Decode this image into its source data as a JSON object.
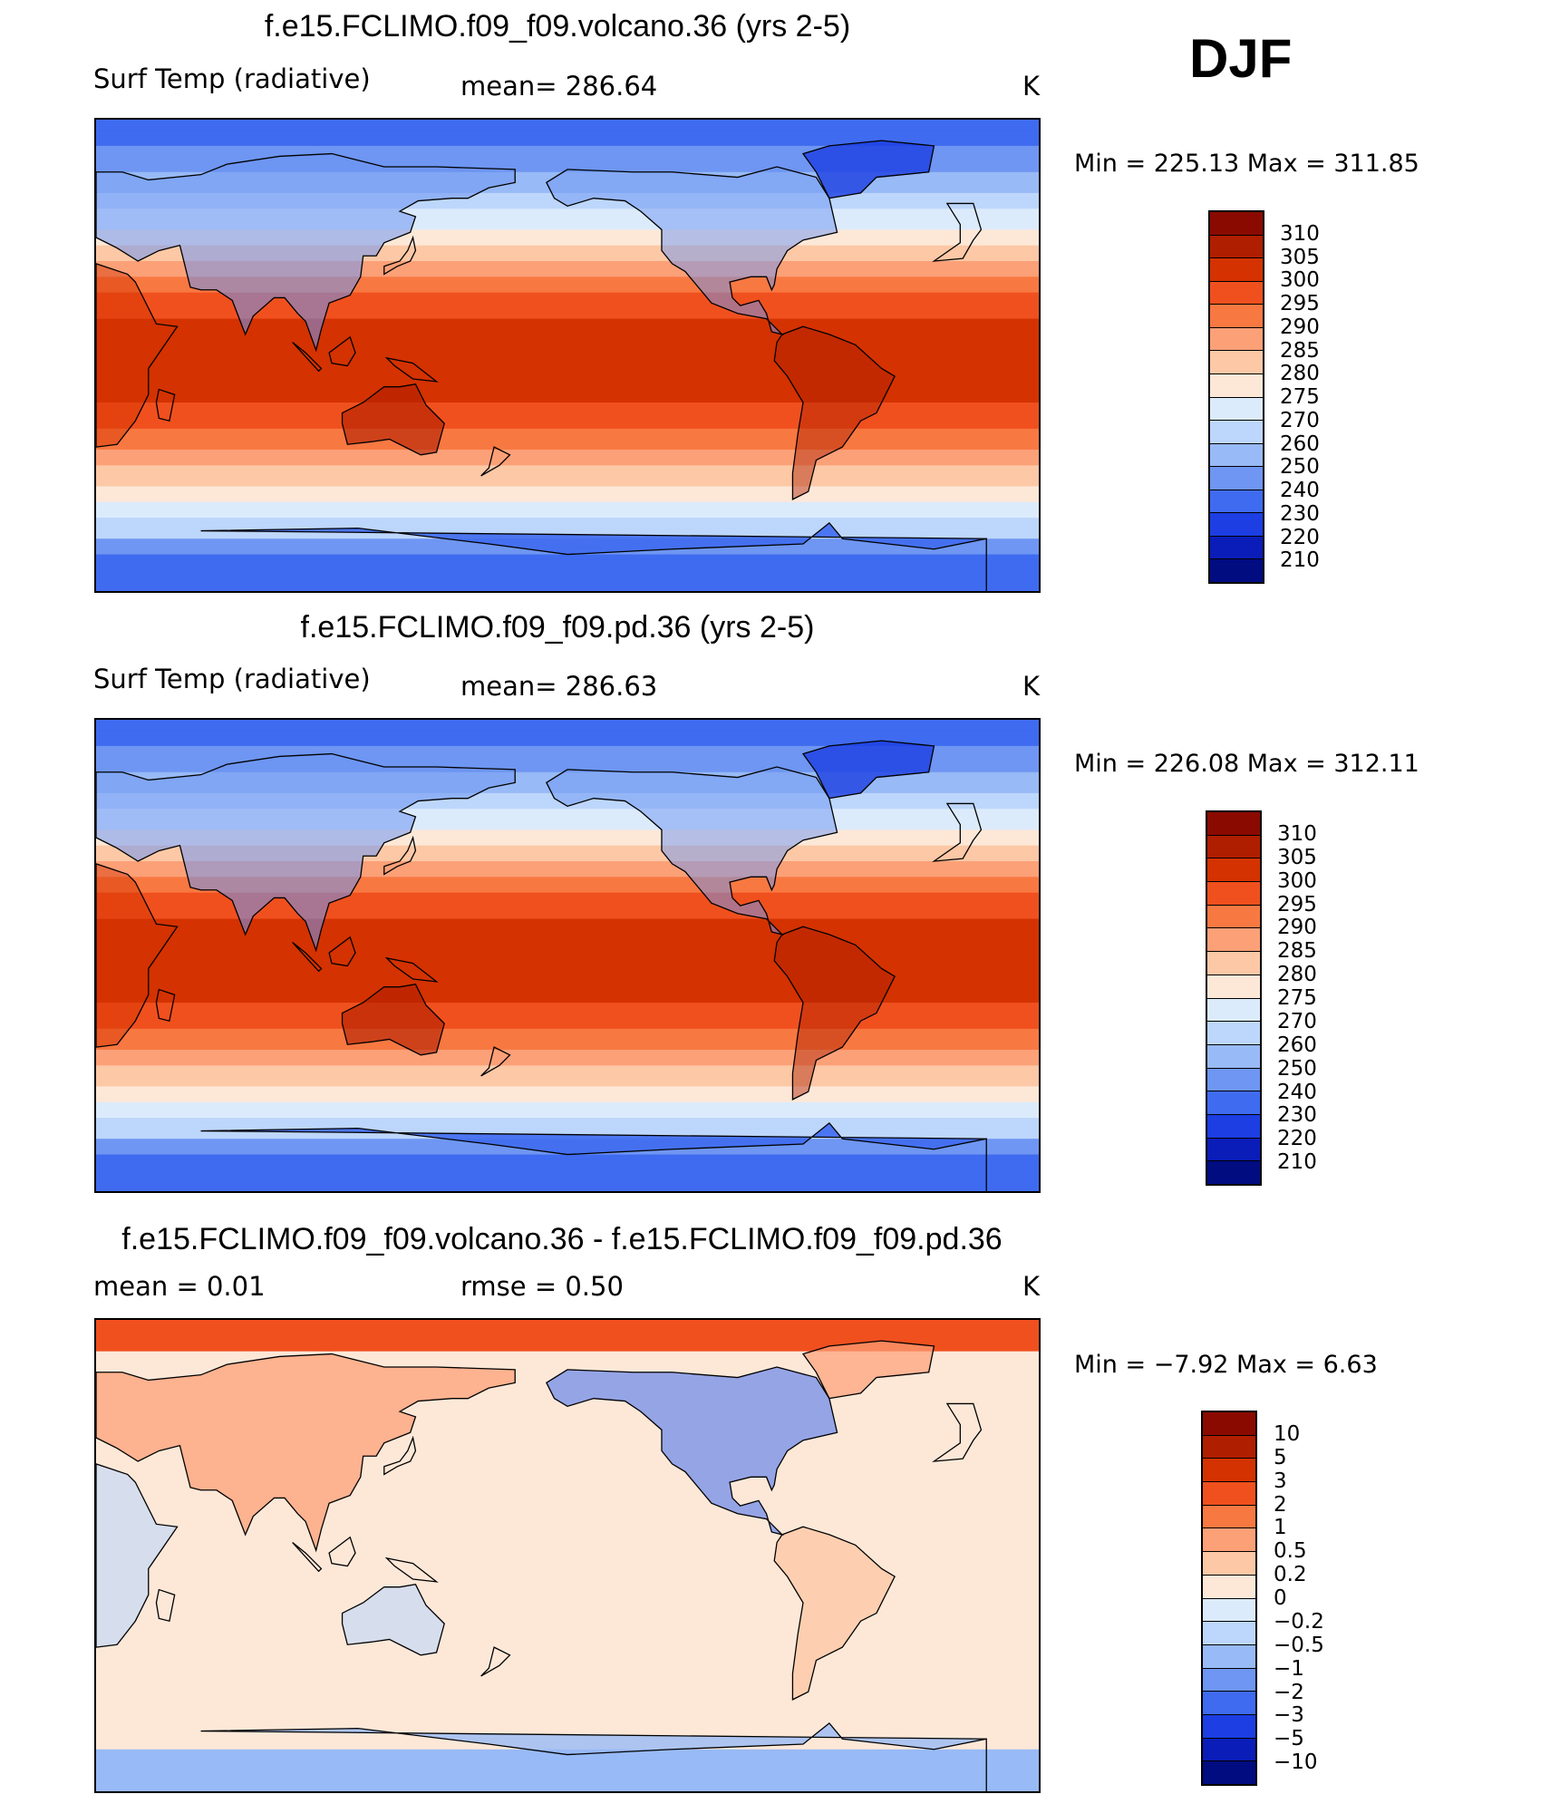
{
  "season": "DJF",
  "panels": [
    {
      "title": "f.e15.FCLIMO.f09_f09.volcano.36 (yrs 2-5)",
      "left_label": "Surf Temp (radiative)",
      "center_label": "mean=  286.64",
      "unit": "K",
      "minmax": "Min  =  225.13  Max  =  311.85",
      "map_kind": "abs"
    },
    {
      "title": "f.e15.FCLIMO.f09_f09.pd.36 (yrs 2-5)",
      "left_label": "Surf Temp (radiative)",
      "center_label": "mean=  286.63",
      "unit": "K",
      "minmax": "Min  =  226.08  Max  =  312.11",
      "map_kind": "abs"
    },
    {
      "title": "f.e15.FCLIMO.f09_f09.volcano.36 - f.e15.FCLIMO.f09_f09.pd.36",
      "left_label": "mean  =      0.01",
      "center_label": "rmse  =      0.50",
      "unit": "K",
      "minmax": "Min  =     −7.92  Max  =       6.63",
      "map_kind": "diff"
    }
  ],
  "legends": {
    "abs": {
      "labels": [
        "310",
        "305",
        "300",
        "295",
        "290",
        "285",
        "280",
        "275",
        "270",
        "260",
        "250",
        "240",
        "230",
        "220",
        "210"
      ],
      "colors": [
        "#8b0a00",
        "#b01e00",
        "#d43200",
        "#f0501e",
        "#f87842",
        "#fca078",
        "#fcc8a6",
        "#fde8d8",
        "#dcebfb",
        "#bdd6fb",
        "#98baf6",
        "#6e96f2",
        "#3f6bf0",
        "#1c3ee2",
        "#0a1db8",
        "#000c80"
      ]
    },
    "diff": {
      "labels": [
        "10",
        "5",
        "3",
        "2",
        "1",
        "0.5",
        "0.2",
        "0",
        "−0.2",
        "−0.5",
        "−1",
        "−2",
        "−3",
        "−5",
        "−10"
      ],
      "colors": [
        "#8b0a00",
        "#b01e00",
        "#d43200",
        "#f0501e",
        "#f87842",
        "#fca078",
        "#fcc8a6",
        "#fde8d8",
        "#dcebfb",
        "#bdd6fb",
        "#98baf6",
        "#6e96f2",
        "#3f6bf0",
        "#1c3ee2",
        "#0a1db8",
        "#000c80"
      ]
    }
  }
}
